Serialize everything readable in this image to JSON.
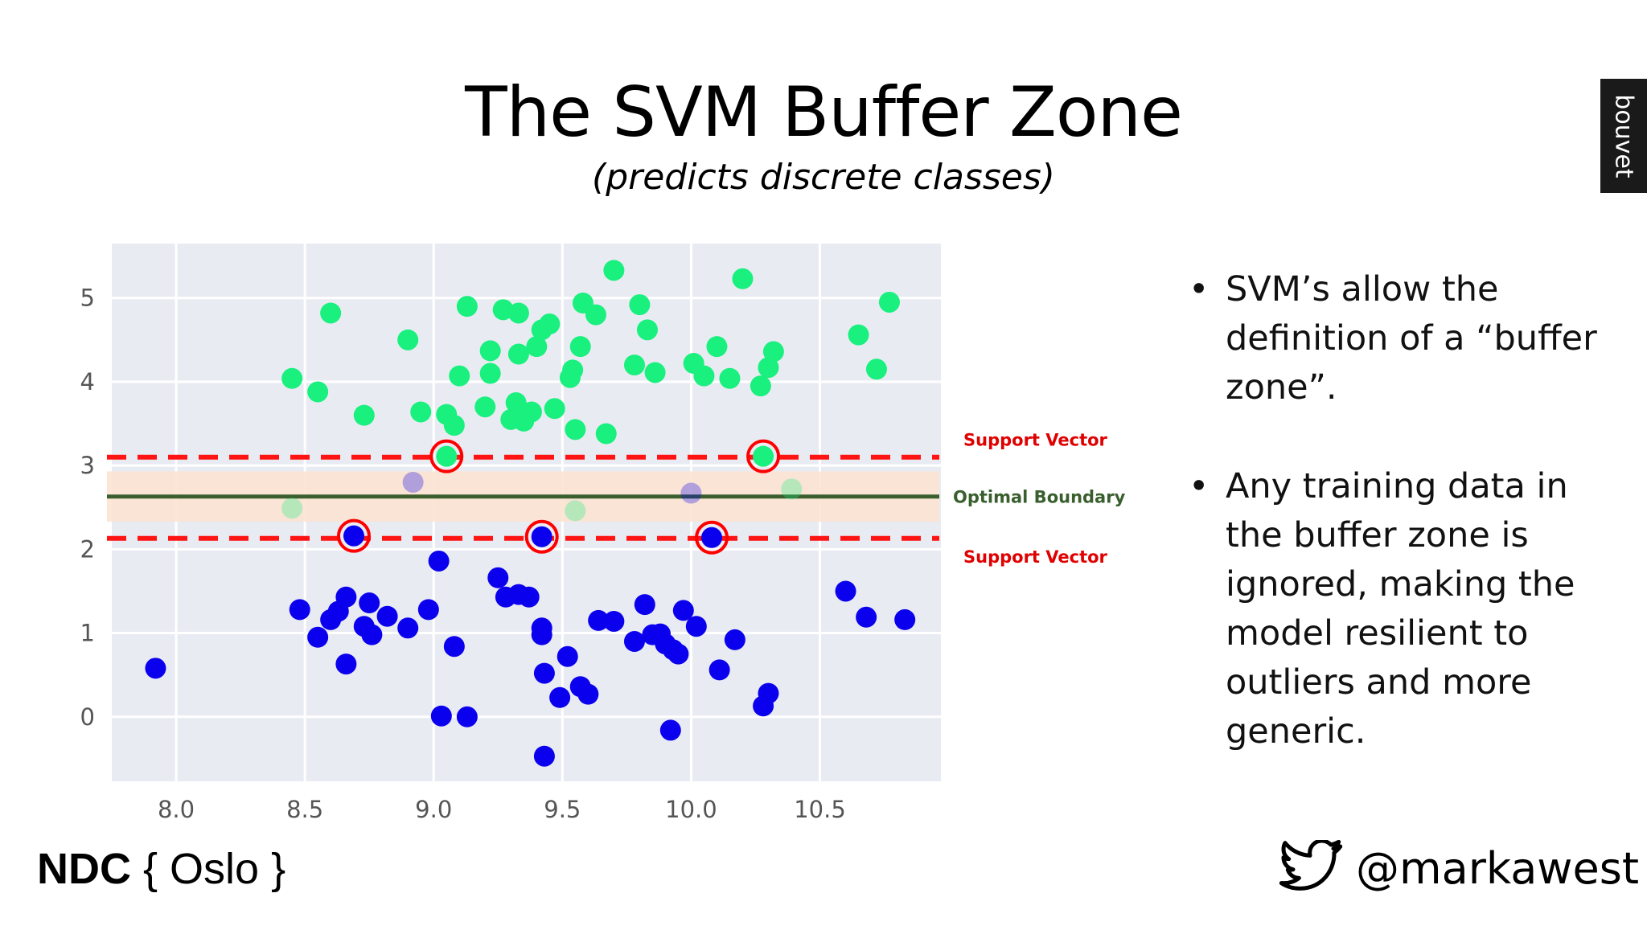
{
  "slide": {
    "title": "The SVM Buffer Zone",
    "subtitle": "(predicts discrete classes)",
    "brand": "bouvet",
    "bullets": [
      "SVM’s allow the definition of a “buffer zone”.",
      "Any training data in the buffer zone is ignored, making the model resilient to outliers and more generic."
    ],
    "footer_logo": {
      "left": "NDC",
      "right": "{ Oslo }"
    },
    "handle": "@markawest",
    "handle_icon": "twitter-bird-icon"
  },
  "chart_data": {
    "type": "scatter",
    "xlim": [
      7.75,
      10.97
    ],
    "ylim": [
      -0.77,
      5.65
    ],
    "xticks": [
      8.0,
      8.5,
      9.0,
      9.5,
      10.0,
      10.5
    ],
    "yticks": [
      0,
      1,
      2,
      3,
      4,
      5
    ],
    "grid": true,
    "colors": {
      "upper_class": "#19f07e",
      "lower_class": "#0b00ee",
      "support_ring": "#ff0000",
      "support_line": "#ff1414",
      "boundary": "#3a5f2e",
      "buffer_zone": "#fbe3cf",
      "plot_bg": "#e9ebf3"
    },
    "series": [
      {
        "values": [
          [
            8.45,
            4.04
          ],
          [
            8.55,
            3.88
          ],
          [
            8.6,
            4.82
          ],
          [
            8.73,
            3.6
          ],
          [
            8.9,
            4.5
          ],
          [
            8.95,
            3.64
          ],
          [
            9.05,
            3.61
          ],
          [
            9.08,
            3.48
          ],
          [
            9.1,
            4.07
          ],
          [
            9.13,
            4.9
          ],
          [
            9.2,
            3.7
          ],
          [
            9.22,
            4.37
          ],
          [
            9.22,
            4.1
          ],
          [
            9.27,
            4.86
          ],
          [
            9.3,
            3.55
          ],
          [
            9.32,
            3.75
          ],
          [
            9.33,
            4.82
          ],
          [
            9.33,
            4.33
          ],
          [
            9.35,
            3.53
          ],
          [
            9.38,
            3.64
          ],
          [
            9.4,
            4.42
          ],
          [
            9.42,
            4.62
          ],
          [
            9.45,
            4.69
          ],
          [
            9.47,
            3.68
          ],
          [
            9.53,
            4.05
          ],
          [
            9.54,
            4.14
          ],
          [
            9.55,
            3.43
          ],
          [
            9.57,
            4.42
          ],
          [
            9.58,
            4.94
          ],
          [
            9.63,
            4.8
          ],
          [
            9.67,
            3.38
          ],
          [
            9.7,
            5.33
          ],
          [
            9.78,
            4.2
          ],
          [
            9.8,
            4.92
          ],
          [
            9.83,
            4.62
          ],
          [
            9.86,
            4.11
          ],
          [
            10.01,
            4.22
          ],
          [
            10.05,
            4.07
          ],
          [
            10.1,
            4.42
          ],
          [
            10.15,
            4.04
          ],
          [
            10.2,
            5.23
          ],
          [
            10.27,
            3.95
          ],
          [
            10.3,
            4.17
          ],
          [
            10.32,
            4.36
          ],
          [
            10.65,
            4.56
          ],
          [
            10.72,
            4.15
          ],
          [
            10.77,
            4.95
          ]
        ]
      },
      {
        "values": [
          [
            7.92,
            0.58
          ],
          [
            8.48,
            1.28
          ],
          [
            8.55,
            0.95
          ],
          [
            8.6,
            1.16
          ],
          [
            8.63,
            1.26
          ],
          [
            8.66,
            1.43
          ],
          [
            8.66,
            0.63
          ],
          [
            8.73,
            1.08
          ],
          [
            8.75,
            1.36
          ],
          [
            8.76,
            0.98
          ],
          [
            8.82,
            1.2
          ],
          [
            8.9,
            1.06
          ],
          [
            8.98,
            1.28
          ],
          [
            9.02,
            1.86
          ],
          [
            9.08,
            0.84
          ],
          [
            9.03,
            0.01
          ],
          [
            9.13,
            0.0
          ],
          [
            9.25,
            1.66
          ],
          [
            9.28,
            1.43
          ],
          [
            9.33,
            1.46
          ],
          [
            9.37,
            1.43
          ],
          [
            9.42,
            0.98
          ],
          [
            9.42,
            1.06
          ],
          [
            9.43,
            0.52
          ],
          [
            9.43,
            -0.47
          ],
          [
            9.49,
            0.23
          ],
          [
            9.52,
            0.72
          ],
          [
            9.57,
            0.36
          ],
          [
            9.6,
            0.27
          ],
          [
            9.64,
            1.15
          ],
          [
            9.7,
            1.14
          ],
          [
            9.78,
            0.9
          ],
          [
            9.82,
            1.34
          ],
          [
            9.85,
            0.98
          ],
          [
            9.88,
            0.99
          ],
          [
            9.9,
            0.87
          ],
          [
            9.93,
            0.8
          ],
          [
            9.95,
            0.75
          ],
          [
            9.97,
            1.27
          ],
          [
            9.92,
            -0.16
          ],
          [
            10.02,
            1.08
          ],
          [
            10.11,
            0.56
          ],
          [
            10.17,
            0.92
          ],
          [
            10.28,
            0.13
          ],
          [
            10.3,
            0.28
          ],
          [
            10.6,
            1.5
          ],
          [
            10.68,
            1.19
          ],
          [
            10.83,
            1.16
          ]
        ]
      }
    ],
    "buffer_points": [
      {
        "class": "upper",
        "values": [
          [
            8.45,
            2.49
          ],
          [
            9.55,
            2.46
          ],
          [
            10.39,
            2.72
          ]
        ]
      },
      {
        "class": "lower",
        "values": [
          [
            8.92,
            2.8
          ],
          [
            10.0,
            2.67
          ]
        ]
      }
    ],
    "support_vectors": {
      "upper": [
        [
          9.05,
          3.11
        ],
        [
          10.28,
          3.11
        ]
      ],
      "lower": [
        [
          8.69,
          2.16
        ],
        [
          9.42,
          2.15
        ],
        [
          10.08,
          2.14
        ]
      ]
    },
    "lines": [
      {
        "label": "Support Vector",
        "y": 3.1,
        "style": "dashed"
      },
      {
        "label": "Optimal Boundary",
        "y": 2.63,
        "style": "solid"
      },
      {
        "label": "Support Vector",
        "y": 2.13,
        "style": "dashed"
      }
    ],
    "buffer_zone": [
      2.33,
      2.93
    ]
  }
}
